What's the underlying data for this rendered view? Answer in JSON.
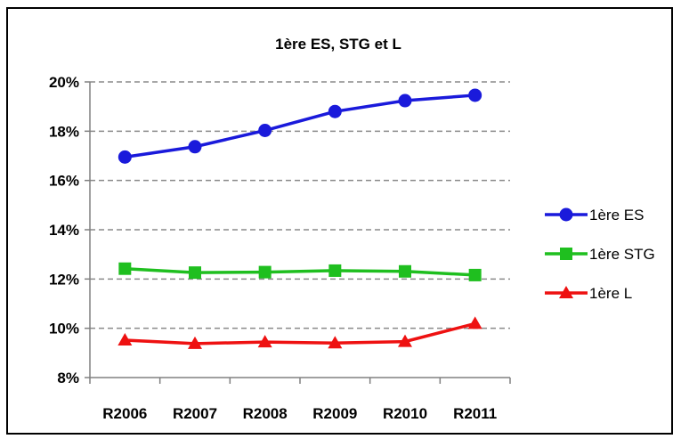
{
  "chart_data": {
    "type": "line",
    "title": "1ère ES, STG et L",
    "xlabel": "",
    "ylabel": "",
    "categories": [
      "R2006",
      "R2007",
      "R2008",
      "R2009",
      "R2010",
      "R2011"
    ],
    "ylim": [
      0.08,
      0.2
    ],
    "yticks": [
      "8%",
      "10%",
      "12%",
      "14%",
      "16%",
      "18%",
      "20%"
    ],
    "grid": true,
    "legend_position": "right",
    "series": [
      {
        "name": "1ère ES",
        "color": "#1a1adb",
        "marker": "circle",
        "values": [
          0.1695,
          0.1737,
          0.1803,
          0.188,
          0.1924,
          0.1946
        ]
      },
      {
        "name": "1ère STG",
        "color": "#1fbf1f",
        "marker": "square",
        "values": [
          0.1242,
          0.1226,
          0.1228,
          0.1234,
          0.1231,
          0.1216
        ]
      },
      {
        "name": "1ère L",
        "color": "#ee1111",
        "marker": "triangle",
        "values": [
          0.0952,
          0.0938,
          0.0944,
          0.094,
          0.0946,
          0.1019
        ]
      }
    ]
  }
}
